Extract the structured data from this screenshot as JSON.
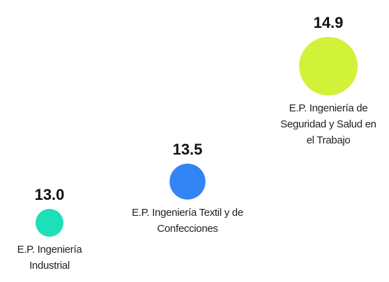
{
  "chart_data": {
    "type": "bubble",
    "categories": [
      "E.P. Ingeniería Industrial",
      "E.P. Ingeniería Textil y de Confecciones",
      "E.P. Ingeniería de Seguridad y Salud en el Trabajo"
    ],
    "values": [
      13.0,
      13.5,
      14.9
    ],
    "value_labels": [
      "13.0",
      "13.5",
      "14.9"
    ],
    "colors": [
      "#1de0b8",
      "#3385f5",
      "#d2f23a"
    ]
  }
}
